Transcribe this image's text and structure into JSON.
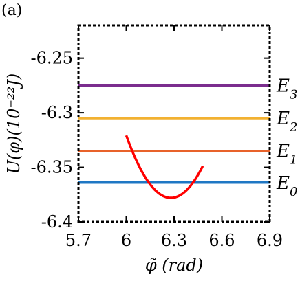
{
  "panel_label": "(a)",
  "chart_data": {
    "type": "line",
    "xlabel": "φ̃ (rad)",
    "ylabel": "U(φ)(10⁻²²J)",
    "xlim": [
      5.7,
      6.9
    ],
    "ylim": [
      -6.4,
      -6.22
    ],
    "xticks": [
      5.7,
      6.0,
      6.3,
      6.6,
      6.9
    ],
    "xtick_labels": [
      "5.7",
      "6",
      "6.3",
      "6.6",
      "6.9"
    ],
    "yticks": [
      -6.4,
      -6.35,
      -6.3,
      -6.25
    ],
    "ytick_labels": [
      "-6.4",
      "-6.35",
      "-6.3",
      "-6.25"
    ],
    "grid": false,
    "potential": {
      "color": "#ff0000",
      "minimum": {
        "x": 6.28,
        "y": -6.378
      },
      "curvature": 0.73,
      "x_range": [
        6.0,
        6.48
      ]
    },
    "energy_levels": [
      {
        "label": "E",
        "sub": "0",
        "y": -6.364,
        "color": "#1f77c4"
      },
      {
        "label": "E",
        "sub": "1",
        "y": -6.335,
        "color": "#e8622a"
      },
      {
        "label": "E",
        "sub": "2",
        "y": -6.305,
        "color": "#f2b131"
      },
      {
        "label": "E",
        "sub": "3",
        "y": -6.275,
        "color": "#7b2d8e"
      }
    ]
  }
}
